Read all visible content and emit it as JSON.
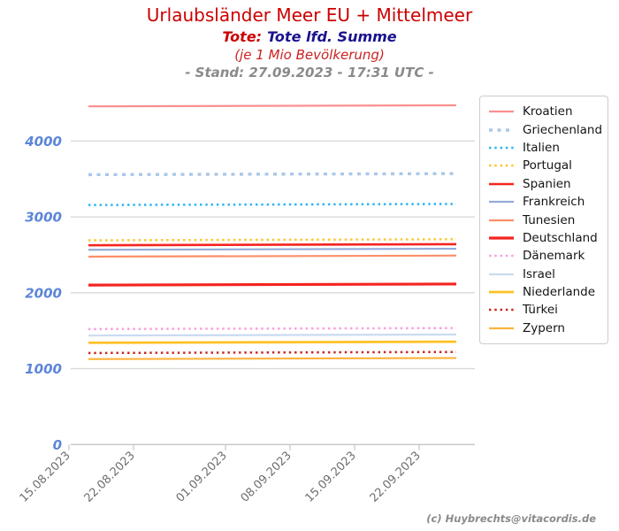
{
  "header": {
    "title": "Urlaubsländer Meer EU + Mittelmeer",
    "subtitle_metric_label": "Tote:",
    "subtitle_metric_value": "Tote lfd. Summe",
    "subtitle_unit": "(je 1 Mio Bevölkerung)",
    "stand_line": "- Stand: 27.09.2023 - 17:31 UTC -"
  },
  "footer": {
    "copyright": "(c) Huybrechts@vitacordis.de"
  },
  "colors": {
    "title_red": "#cc0000",
    "subtitle_navy": "#1a128f",
    "unit_red": "#cc2222",
    "stand_gray": "#8a8a8a",
    "axis_value_blue": "#5c86d8",
    "tick_label_gray": "#6e6e6e",
    "grid_gray": "#d9d9d9",
    "axis_gray": "#c4c4c4",
    "legend_border": "#cccccc"
  },
  "chart_data": {
    "type": "line",
    "title": "Urlaubsländer Meer EU + Mittelmeer",
    "subtitle": "Tote: Tote lfd. Summe (je 1 Mio Bevölkerung)",
    "as_of": "27.09.2023 - 17:31 UTC",
    "xlabel": "",
    "ylabel": "",
    "ylim": [
      0,
      4700
    ],
    "yticks": [
      0,
      1000,
      2000,
      3000,
      4000
    ],
    "xticklabels": [
      "15.08.2023",
      "22.08.2023",
      "01.09.2023",
      "08.09.2023",
      "15.09.2023",
      "22.09.2023"
    ],
    "grid": "horizontal",
    "legend_position": "right",
    "series": [
      {
        "name": "Kroatien",
        "value": 4470,
        "color": "#fb8f8f",
        "line_style": "solid",
        "line_width": 2.2
      },
      {
        "name": "Griechenland",
        "value": 3570,
        "color": "#aac7e8",
        "line_style": "dashed",
        "line_width": 3.4
      },
      {
        "name": "Italien",
        "value": 3170,
        "color": "#29b3f2",
        "line_style": "dotted",
        "line_width": 2.5
      },
      {
        "name": "Portugal",
        "value": 2705,
        "color": "#fec32b",
        "line_style": "dotted",
        "line_width": 2.5
      },
      {
        "name": "Spanien",
        "value": 2640,
        "color": "#f42420",
        "line_style": "solid",
        "line_width": 2.6
      },
      {
        "name": "Frankreich",
        "value": 2580,
        "color": "#93abd9",
        "line_style": "solid",
        "line_width": 2.2
      },
      {
        "name": "Tunesien",
        "value": 2490,
        "color": "#fb8f68",
        "line_style": "solid",
        "line_width": 2.2
      },
      {
        "name": "Deutschland",
        "value": 2115,
        "color": "#f42420",
        "line_style": "solid",
        "line_width": 3.2
      },
      {
        "name": "Dänemark",
        "value": 1535,
        "color": "#f99ddb",
        "line_style": "dotted",
        "line_width": 2.5
      },
      {
        "name": "Israel",
        "value": 1450,
        "color": "#c9dbf0",
        "line_style": "solid",
        "line_width": 2.2
      },
      {
        "name": "Niederlande",
        "value": 1355,
        "color": "#fec125",
        "line_style": "solid",
        "line_width": 2.7
      },
      {
        "name": "Türkei",
        "value": 1220,
        "color": "#c9241d",
        "line_style": "dotted",
        "line_width": 2.5
      },
      {
        "name": "Zypern",
        "value": 1140,
        "color": "#feb33f",
        "line_style": "solid",
        "line_width": 2.2
      }
    ]
  }
}
